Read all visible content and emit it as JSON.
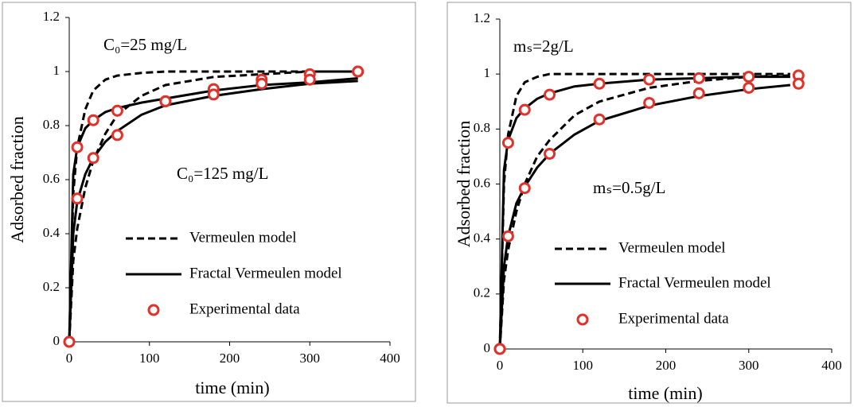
{
  "chart_data": [
    {
      "type": "line",
      "xlabel": "time (min)",
      "ylabel": "Adsorbed fraction",
      "xlim": [
        0,
        400
      ],
      "xticks": [
        0,
        100,
        200,
        300,
        400
      ],
      "ylim": [
        0,
        1.2
      ],
      "yticks": [
        0,
        0.2,
        0.4,
        0.6,
        0.8,
        1,
        1.2
      ],
      "annotations": [
        "C₀=25 mg/L",
        "C₀=125 mg/L"
      ],
      "series": [
        {
          "name": "Vermeulen model",
          "style": "dashed",
          "color": "#000000",
          "x": [
            0,
            5,
            10,
            20,
            30,
            45,
            60,
            90,
            120,
            180,
            240,
            300,
            360
          ],
          "values": [
            0,
            0.55,
            0.72,
            0.86,
            0.93,
            0.97,
            0.985,
            0.995,
            1,
            1,
            1,
            1,
            1
          ]
        },
        {
          "name": "Vermeulen model",
          "style": "dashed",
          "color": "#000000",
          "x": [
            0,
            5,
            10,
            20,
            30,
            45,
            60,
            90,
            120,
            180,
            240,
            300,
            360
          ],
          "values": [
            0,
            0.3,
            0.42,
            0.57,
            0.67,
            0.77,
            0.84,
            0.91,
            0.95,
            0.98,
            0.99,
            1,
            1
          ]
        },
        {
          "name": "Fractal Vermeulen model",
          "style": "solid",
          "color": "#000000",
          "x": [
            0,
            5,
            10,
            20,
            30,
            45,
            60,
            90,
            120,
            180,
            240,
            300,
            360
          ],
          "values": [
            0,
            0.62,
            0.72,
            0.79,
            0.82,
            0.85,
            0.865,
            0.885,
            0.9,
            0.93,
            0.95,
            0.96,
            0.975
          ]
        },
        {
          "name": "Fractal Vermeulen model",
          "style": "solid",
          "color": "#000000",
          "x": [
            0,
            5,
            10,
            20,
            30,
            45,
            60,
            90,
            120,
            180,
            240,
            300,
            360
          ],
          "values": [
            0,
            0.4,
            0.52,
            0.62,
            0.68,
            0.74,
            0.78,
            0.84,
            0.875,
            0.91,
            0.935,
            0.955,
            0.965
          ]
        },
        {
          "name": "Experimental data",
          "style": "markers",
          "color": "#e0322a",
          "x": [
            0,
            10,
            30,
            60,
            120,
            180,
            240,
            300,
            360
          ],
          "values": [
            0,
            0.72,
            0.82,
            0.855,
            0.89,
            0.935,
            0.97,
            0.99,
            1
          ]
        },
        {
          "name": "Experimental data",
          "style": "markers",
          "color": "#e0322a",
          "x": [
            0,
            10,
            30,
            60,
            120,
            180,
            240,
            300,
            360
          ],
          "values": [
            0,
            0.53,
            0.68,
            0.765,
            0.89,
            0.915,
            0.955,
            0.97,
            1
          ]
        }
      ]
    },
    {
      "type": "line",
      "xlabel": "time (min)",
      "ylabel": "Adsorbed fraction",
      "xlim": [
        0,
        400
      ],
      "xticks": [
        0,
        100,
        200,
        300,
        400
      ],
      "ylim": [
        0,
        1.2
      ],
      "yticks": [
        0,
        0.2,
        0.4,
        0.6,
        0.8,
        1,
        1.2
      ],
      "annotations": [
        "mₛ=2g/L",
        "mₛ=0.5g/L"
      ],
      "series": [
        {
          "name": "Vermeulen model",
          "style": "dashed",
          "color": "#000000",
          "x": [
            0,
            5,
            10,
            20,
            30,
            45,
            60,
            90,
            120,
            180,
            240,
            300,
            350
          ],
          "values": [
            0,
            0.6,
            0.78,
            0.92,
            0.97,
            0.99,
            1,
            1,
            1,
            1,
            1,
            1,
            1
          ]
        },
        {
          "name": "Vermeulen model",
          "style": "dashed",
          "color": "#000000",
          "x": [
            0,
            5,
            10,
            20,
            30,
            45,
            60,
            90,
            120,
            180,
            240,
            300,
            350
          ],
          "values": [
            0,
            0.25,
            0.36,
            0.5,
            0.6,
            0.7,
            0.76,
            0.85,
            0.9,
            0.95,
            0.975,
            0.99,
            0.995
          ]
        },
        {
          "name": "Fractal Vermeulen model",
          "style": "solid",
          "color": "#000000",
          "x": [
            0,
            5,
            10,
            20,
            30,
            45,
            60,
            90,
            120,
            180,
            240,
            300,
            350
          ],
          "values": [
            0,
            0.65,
            0.76,
            0.84,
            0.875,
            0.91,
            0.93,
            0.955,
            0.965,
            0.98,
            0.985,
            0.99,
            0.99
          ]
        },
        {
          "name": "Fractal Vermeulen model",
          "style": "solid",
          "color": "#000000",
          "x": [
            0,
            5,
            10,
            20,
            30,
            45,
            60,
            90,
            120,
            180,
            240,
            300,
            350
          ],
          "values": [
            0,
            0.3,
            0.41,
            0.53,
            0.59,
            0.66,
            0.71,
            0.78,
            0.83,
            0.885,
            0.92,
            0.945,
            0.96
          ]
        },
        {
          "name": "Experimental data",
          "style": "markers",
          "color": "#e0322a",
          "x": [
            0,
            10,
            30,
            60,
            120,
            180,
            240,
            300,
            360
          ],
          "values": [
            0,
            0.75,
            0.87,
            0.925,
            0.965,
            0.98,
            0.985,
            0.99,
            0.995
          ]
        },
        {
          "name": "Experimental data",
          "style": "markers",
          "color": "#e0322a",
          "x": [
            0,
            10,
            30,
            60,
            120,
            180,
            240,
            300,
            360
          ],
          "values": [
            0,
            0.41,
            0.585,
            0.71,
            0.835,
            0.895,
            0.93,
            0.95,
            0.965
          ]
        }
      ]
    }
  ]
}
